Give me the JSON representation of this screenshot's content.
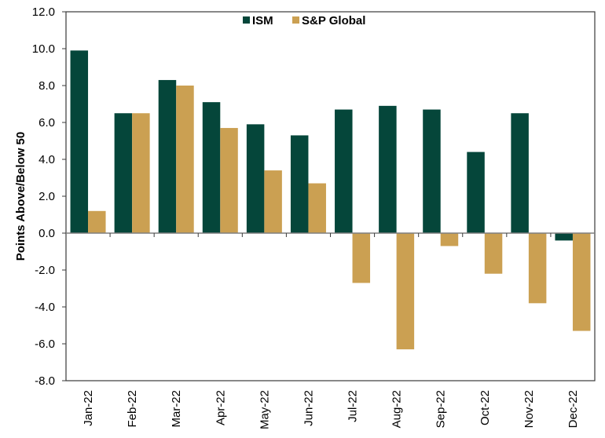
{
  "chart_data": {
    "type": "bar",
    "title": "",
    "xlabel": "",
    "ylabel": "Points Above/Below 50",
    "ylim": [
      -8,
      12
    ],
    "yticks": [
      12,
      10,
      8,
      6,
      4,
      2,
      0,
      -2,
      -4,
      -6,
      -8
    ],
    "ytick_labels": [
      "12.0",
      "10.0",
      "8.0",
      "6.0",
      "4.0",
      "2.0",
      "0.0",
      "-2.0",
      "-4.0",
      "-6.0",
      "-8.0"
    ],
    "grid": false,
    "legend_position": "top-center",
    "categories": [
      "Jan-22",
      "Feb-22",
      "Mar-22",
      "Apr-22",
      "May-22",
      "Jun-22",
      "Jul-22",
      "Aug-22",
      "Sep-22",
      "Oct-22",
      "Nov-22",
      "Dec-22"
    ],
    "series": [
      {
        "name": "ISM",
        "color": "#05463A",
        "values": [
          9.9,
          6.5,
          8.3,
          7.1,
          5.9,
          5.3,
          6.7,
          6.9,
          6.7,
          4.4,
          6.5,
          -0.4
        ]
      },
      {
        "name": "S&P Global",
        "color": "#CBA052",
        "values": [
          1.2,
          6.5,
          8.0,
          5.7,
          3.4,
          2.7,
          -2.7,
          -6.3,
          -0.7,
          -2.2,
          -3.8,
          -5.3
        ]
      }
    ]
  }
}
